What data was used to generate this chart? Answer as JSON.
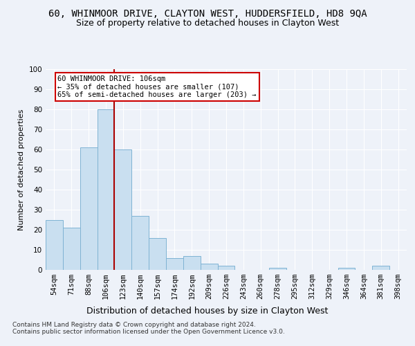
{
  "title": "60, WHINMOOR DRIVE, CLAYTON WEST, HUDDERSFIELD, HD8 9QA",
  "subtitle": "Size of property relative to detached houses in Clayton West",
  "xlabel": "Distribution of detached houses by size in Clayton West",
  "ylabel": "Number of detached properties",
  "footnote": "Contains HM Land Registry data © Crown copyright and database right 2024.\nContains public sector information licensed under the Open Government Licence v3.0.",
  "categories": [
    "54sqm",
    "71sqm",
    "88sqm",
    "106sqm",
    "123sqm",
    "140sqm",
    "157sqm",
    "174sqm",
    "192sqm",
    "209sqm",
    "226sqm",
    "243sqm",
    "260sqm",
    "278sqm",
    "295sqm",
    "312sqm",
    "329sqm",
    "346sqm",
    "364sqm",
    "381sqm",
    "398sqm"
  ],
  "values": [
    25,
    21,
    61,
    80,
    60,
    27,
    16,
    6,
    7,
    3,
    2,
    0,
    0,
    1,
    0,
    0,
    0,
    1,
    0,
    2,
    0
  ],
  "bar_color": "#c9dff0",
  "bar_edge_color": "#7fb3d3",
  "marker_bar_index": 3,
  "marker_line_color": "#aa0000",
  "annotation_text": "60 WHINMOOR DRIVE: 106sqm\n← 35% of detached houses are smaller (107)\n65% of semi-detached houses are larger (203) →",
  "annotation_box_facecolor": "#ffffff",
  "annotation_box_edgecolor": "#cc0000",
  "ylim": [
    0,
    100
  ],
  "background_color": "#eef2f9",
  "grid_color": "#ffffff",
  "title_fontsize": 10,
  "subtitle_fontsize": 9,
  "ylabel_fontsize": 8,
  "xlabel_fontsize": 9,
  "tick_fontsize": 7.5,
  "footnote_fontsize": 6.5,
  "annotation_fontsize": 7.5
}
